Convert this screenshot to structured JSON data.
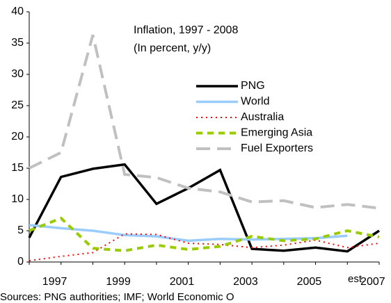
{
  "chart_data": {
    "type": "line",
    "title": "Inflation, 1997 - 2008",
    "subtitle": "(In percent, y/y)",
    "categories": [
      "1997",
      null,
      "1999",
      null,
      "2001",
      null,
      "2003",
      null,
      "2005",
      null,
      "2007",
      null
    ],
    "annotations": [
      "est.",
      "Sources: PNG authorities; IMF; World Economic O"
    ],
    "series": [
      {
        "name": "PNG",
        "color": "#000000",
        "dash": "solid",
        "width": 3.5,
        "values": [
          3.9,
          13.6,
          14.9,
          15.6,
          9.3,
          11.8,
          14.7,
          2.1,
          1.8,
          2.3,
          1.7,
          5.0
        ]
      },
      {
        "name": "World",
        "color": "#99ccff",
        "dash": "solid",
        "width": 3.5,
        "values": [
          5.9,
          5.4,
          5.0,
          4.3,
          4.1,
          3.4,
          3.7,
          3.6,
          3.7,
          3.8,
          4.2,
          null
        ]
      },
      {
        "name": "Australia",
        "color": "#ff0000",
        "dash": "dot",
        "width": 2,
        "values": [
          0.2,
          0.9,
          1.5,
          4.5,
          4.4,
          3.0,
          2.8,
          2.3,
          2.7,
          3.5,
          2.3,
          3.0
        ]
      },
      {
        "name": "Emerging Asia",
        "color": "#99cc00",
        "dash": "dash",
        "width": 4,
        "values": [
          5.0,
          7.0,
          2.2,
          1.8,
          2.7,
          2.0,
          2.5,
          4.1,
          3.4,
          3.7,
          5.0,
          4.0
        ]
      },
      {
        "name": "Fuel Exporters",
        "color": "#c0c0c0",
        "dash": "longdash",
        "width": 4,
        "values": [
          15.0,
          17.5,
          36.3,
          14.0,
          13.5,
          11.8,
          11.2,
          9.6,
          9.8,
          8.7,
          9.2,
          8.6
        ]
      }
    ],
    "ylim": [
      0,
      40
    ],
    "yticks": [
      0,
      5,
      10,
      15,
      20,
      25,
      30,
      35,
      40
    ],
    "grid": false
  }
}
